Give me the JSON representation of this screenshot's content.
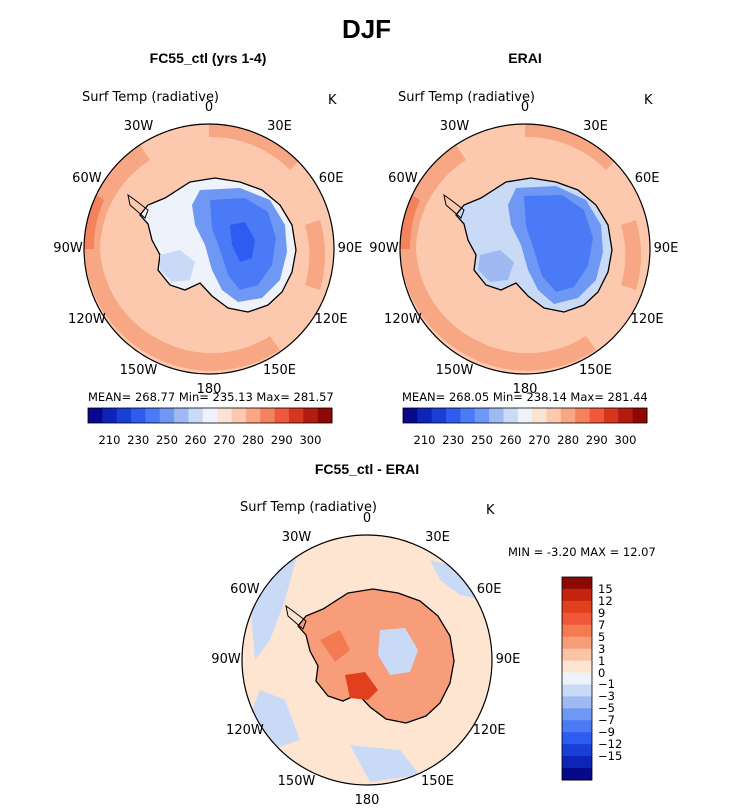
{
  "title": "DJF",
  "panels": [
    {
      "title": "FC55_ctl (yrs 1-4)",
      "variable": "Surf Temp (radiative)",
      "unit": "K",
      "stats": "MEAN= 268.77   Min= 235.13   Max= 281.57",
      "lon_labels": [
        "0",
        "30E",
        "60E",
        "90E",
        "120E",
        "150E",
        "180",
        "150W",
        "120W",
        "90W",
        "60W",
        "30W"
      ]
    },
    {
      "title": "ERAI",
      "variable": "Surf Temp (radiative)",
      "unit": "K",
      "stats": "MEAN= 268.05   Min= 238.14   Max= 281.44",
      "lon_labels": [
        "0",
        "30E",
        "60E",
        "90E",
        "120E",
        "150E",
        "180",
        "150W",
        "120W",
        "90W",
        "60W",
        "30W"
      ]
    },
    {
      "title": "FC55_ctl - ERAI",
      "variable": "Surf Temp (radiative)",
      "unit": "K",
      "stats": "MIN =   -3.20 MAX =   12.07",
      "lon_labels": [
        "0",
        "30E",
        "60E",
        "90E",
        "120E",
        "150E",
        "180",
        "150W",
        "120W",
        "90W",
        "60W",
        "30W"
      ]
    }
  ],
  "colorbar_abs": {
    "tick_labels": [
      "210",
      "230",
      "250",
      "260",
      "270",
      "280",
      "290",
      "300"
    ],
    "colors": [
      "#08088a",
      "#0c24b8",
      "#1a3ed8",
      "#2f5cf0",
      "#4a7af5",
      "#6f98f5",
      "#9fbaf3",
      "#c9daf6",
      "#eef3fb",
      "#fbe3d2",
      "#fbc9ae",
      "#f7a783",
      "#f4825c",
      "#f0583a",
      "#d8351f",
      "#b41b10",
      "#8c0a06"
    ]
  },
  "colorbar_diff": {
    "tick_labels": [
      "15",
      "12",
      "9",
      "7",
      "5",
      "3",
      "1",
      "0",
      "−1",
      "−3",
      "−5",
      "−7",
      "−9",
      "−12",
      "−15"
    ],
    "colors": [
      "#8c0a06",
      "#c5230f",
      "#e0401d",
      "#f0583a",
      "#f47a52",
      "#f79d79",
      "#fbc4a4",
      "#fde5d2",
      "#eef3fb",
      "#c9daf6",
      "#9fbaf3",
      "#6f98f5",
      "#4a7af5",
      "#2f5cf0",
      "#1a3ed8",
      "#0c24b8",
      "#08088a"
    ]
  },
  "chart_data": [
    {
      "type": "heatmap",
      "title": "FC55_ctl (yrs 1-4)",
      "projection": "south polar stereographic",
      "variable": "Surf Temp (radiative)",
      "unit": "K",
      "mean": 268.77,
      "min": 235.13,
      "max": 281.57,
      "colorbar_levels": [
        210,
        230,
        250,
        260,
        270,
        280,
        290,
        300
      ]
    },
    {
      "type": "heatmap",
      "title": "ERAI",
      "projection": "south polar stereographic",
      "variable": "Surf Temp (radiative)",
      "unit": "K",
      "mean": 268.05,
      "min": 238.14,
      "max": 281.44,
      "colorbar_levels": [
        210,
        230,
        250,
        260,
        270,
        280,
        290,
        300
      ]
    },
    {
      "type": "heatmap",
      "title": "FC55_ctl - ERAI",
      "projection": "south polar stereographic",
      "variable": "Surf Temp (radiative)",
      "unit": "K",
      "min": -3.2,
      "max": 12.07,
      "colorbar_levels": [
        -15,
        -12,
        -9,
        -7,
        -5,
        -3,
        -1,
        0,
        1,
        3,
        5,
        7,
        9,
        12,
        15
      ]
    }
  ]
}
